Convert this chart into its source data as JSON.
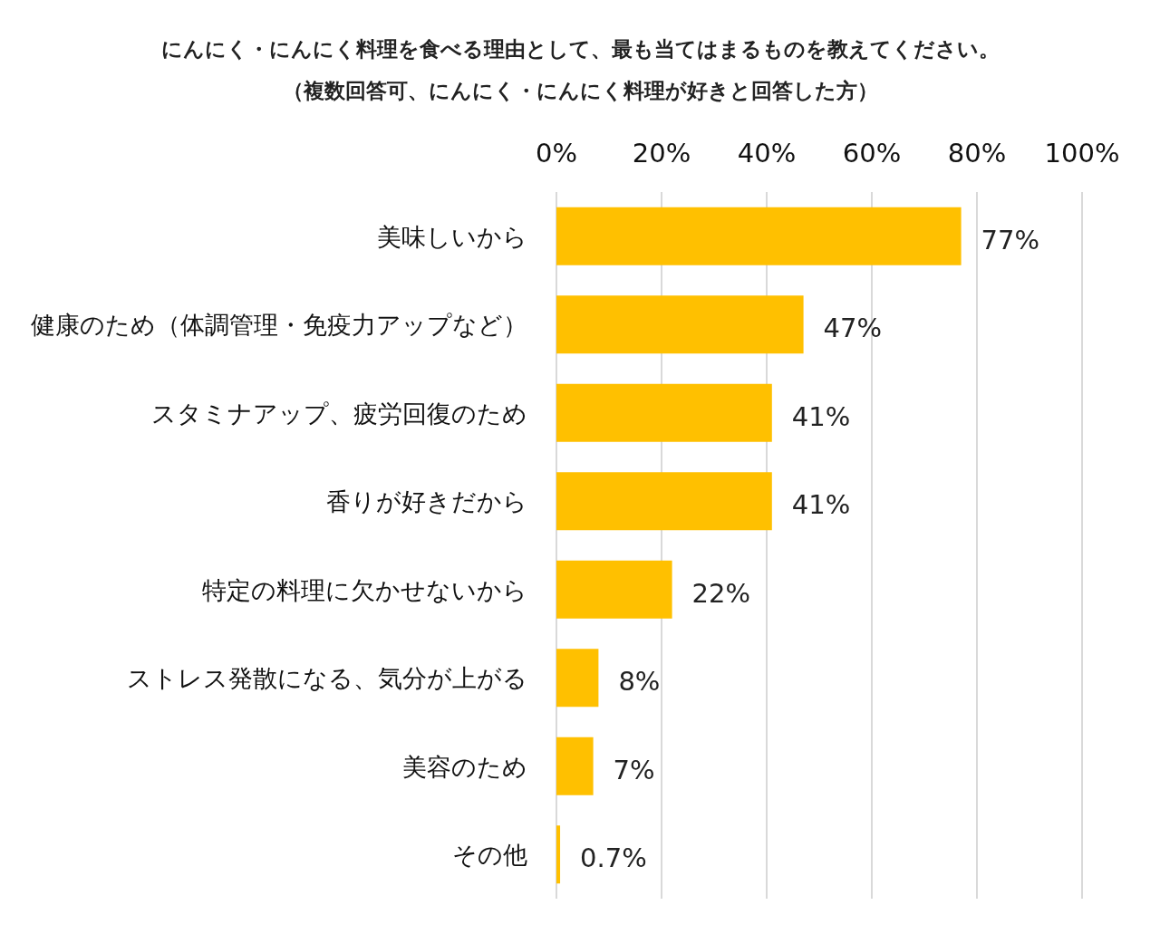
{
  "chart_data": {
    "type": "bar",
    "orientation": "horizontal",
    "title": "にんにく・にんにく料理を食べる理由として、最も当てはまるものを教えてください。",
    "subtitle": "（複数回答可、にんにく・にんにく料理が好きと回答した方）",
    "categories": [
      "美味しいから",
      "健康のため（体調管理・免疫力アップなど）",
      "スタミナアップ、疲労回復のため",
      "香りが好きだから",
      "特定の料理に欠かせないから",
      "ストレス発散になる、気分が上がる",
      "美容のため",
      "その他"
    ],
    "values": [
      77,
      47,
      41,
      41,
      22,
      8,
      7,
      0.7
    ],
    "value_labels": [
      "77%",
      "47%",
      "41%",
      "41%",
      "22%",
      "8%",
      "7%",
      "0.7%"
    ],
    "color": "#ffc000",
    "xlim": [
      0,
      100
    ],
    "xticks": [
      {
        "value": 0,
        "label": "0%"
      },
      {
        "value": 20,
        "label": "20%"
      },
      {
        "value": 40,
        "label": "40%"
      },
      {
        "value": 60,
        "label": "60%"
      },
      {
        "value": 80,
        "label": "80%"
      },
      {
        "value": 100,
        "label": "100%"
      }
    ],
    "grid": "x"
  }
}
